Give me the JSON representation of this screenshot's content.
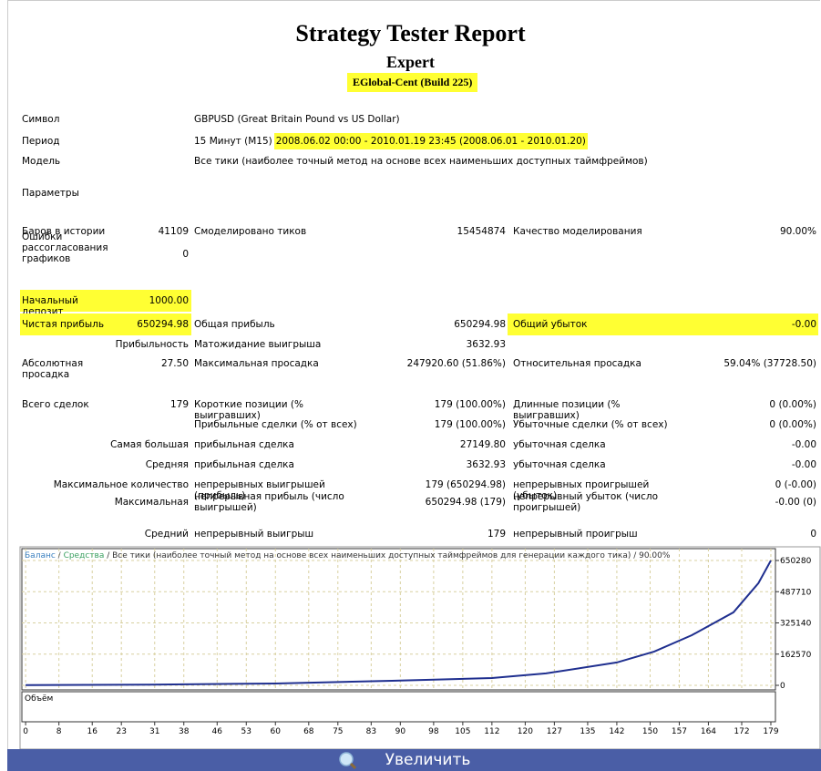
{
  "header": {
    "title": "Strategy Tester Report",
    "subtitle": "Expert",
    "expert": "EGlobal-Cent (Build 225)"
  },
  "info": [
    {
      "label": "Символ",
      "value": "GBPUSD (Great Britain Pound vs US Dollar)"
    },
    {
      "label": "Период",
      "value": "15 Минут (M15)",
      "range": "2008.06.02 00:00 - 2010.01.19 23:45 (2008.06.01 - 2010.01.20)"
    },
    {
      "label": "Модель",
      "value": "Все тики (наиболее точный метод на основе всех наименьших доступных таймфреймов)"
    },
    {
      "label": "Параметры"
    }
  ],
  "stats": [
    {
      "l1": "Баров в истории",
      "v1": "41109",
      "l2": "Смоделировано тиков",
      "v2": "15454874",
      "l3": "Качество моделирования",
      "v3": "90.00%"
    },
    {
      "l1": "Ошибки рассогласования графиков",
      "v1": "0"
    },
    {
      "l1": "Начальный депозит",
      "v1": "1000.00",
      "highlight1": true
    },
    {
      "l1": "Чистая прибыль",
      "v1": "650294.98",
      "l2": "Общая прибыль",
      "v2": "650294.98",
      "l3": "Общий убыток",
      "v3": "-0.00",
      "highlight1": true,
      "highlight3": true
    },
    {
      "l1": "Прибыльность",
      "l2": "Матожидание выигрыша",
      "v2": "3632.93"
    },
    {
      "l1": "Абсолютная просадка",
      "v1": "27.50",
      "l2": "Максимальная просадка",
      "v2": "247920.60 (51.86%)",
      "l3": "Относительная просадка",
      "v3": "59.04% (37728.50)"
    },
    {
      "l1": "Всего сделок",
      "v1": "179",
      "l2": "Короткие позиции (% выигравших)",
      "v2": "179 (100.00%)",
      "l3": "Длинные позиции (% выигравших)",
      "v3": "0 (0.00%)"
    },
    {
      "l2": "Прибыльные сделки (% от всех)",
      "v2": "179 (100.00%)",
      "l3": "Убыточные сделки (% от всех)",
      "v3": "0 (0.00%)"
    },
    {
      "l1": "Самая большая",
      "l2": "прибыльная сделка",
      "v2": "27149.80",
      "l3": "убыточная сделка",
      "v3": "-0.00"
    },
    {
      "l1": "Средняя",
      "l2": "прибыльная сделка",
      "v2": "3632.93",
      "l3": "убыточная сделка",
      "v3": "-0.00"
    },
    {
      "l1": "Максимальное количество",
      "l2": "непрерывных выигрышей (прибыль)",
      "v2": "179 (650294.98)",
      "l3": "непрерывных проигрышей (убыток)",
      "v3": "0 (-0.00)"
    },
    {
      "l1": "Максимальная",
      "l2": "непрерывная прибыль (число выигрышей)",
      "v2": "650294.98 (179)",
      "l3": "непрерывный убыток (число проигрышей)",
      "v3": "-0.00 (0)"
    },
    {
      "l1": "Средний",
      "l2": "непрерывный выигрыш",
      "v2": "179",
      "l3": "непрерывный проигрыш",
      "v3": "0"
    }
  ],
  "chart": {
    "type": "line",
    "title_parts": [
      "Баланс",
      " / ",
      "Средства",
      " / Все тики (наиболее точный метод на основе всех наименьших доступных таймфреймов для генерации каждого тика) / 90.00%"
    ],
    "title_colors": [
      "#3a7fbf",
      "#555555",
      "#3aa060",
      "#333333"
    ],
    "volume_label": "Объём",
    "color": "#1f2f8f",
    "x": [
      0,
      30,
      60,
      88,
      112,
      125,
      142,
      151,
      160,
      170,
      176,
      179
    ],
    "values": [
      1000,
      4000,
      9500,
      24000,
      38000,
      62000,
      119000,
      176000,
      261000,
      380000,
      532000,
      650294.98
    ],
    "xlim": [
      -0.9,
      180.1
    ],
    "ylim": [
      -23700,
      712000
    ],
    "xticks": [
      0,
      8,
      16,
      23,
      31,
      38,
      46,
      53,
      60,
      68,
      75,
      83,
      90,
      98,
      105,
      112,
      120,
      127,
      135,
      142,
      150,
      157,
      164,
      172,
      179
    ],
    "yticks": [
      0,
      162570,
      325140,
      487710,
      650280
    ],
    "grid": true
  },
  "button": {
    "label": "Увеличить"
  }
}
